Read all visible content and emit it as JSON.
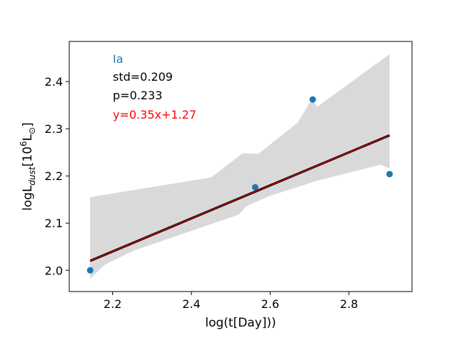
{
  "chart_data": {
    "type": "scatter",
    "title": "",
    "xlabel": "log(t[Day]))",
    "ylabel": {
      "prefix": "logL",
      "subscript": "dust",
      "bracket_open": "[10",
      "superscript": "6",
      "unit": "L",
      "unit_subscript": "⊙",
      "bracket_close": "]"
    },
    "xlim": [
      2.09,
      2.96
    ],
    "ylim": [
      1.955,
      2.485
    ],
    "xticks": [
      2.2,
      2.4,
      2.6,
      2.8
    ],
    "xtick_labels": [
      "2.2",
      "2.4",
      "2.6",
      "2.8"
    ],
    "yticks": [
      2.0,
      2.1,
      2.2,
      2.3,
      2.4
    ],
    "ytick_labels": [
      "2.0",
      "2.1",
      "2.2",
      "2.3",
      "2.4"
    ],
    "grid": false,
    "series": [
      {
        "name": "Ia",
        "color": "#1f77b4",
        "x": [
          2.143,
          2.562,
          2.708,
          2.903
        ],
        "y": [
          2.0,
          2.176,
          2.362,
          2.204
        ]
      }
    ],
    "fit": {
      "color": "#cc0000",
      "edge_color": "#000000",
      "slope": 0.35,
      "intercept": 1.27,
      "x_range": [
        2.143,
        2.903
      ],
      "y_range": [
        2.031,
        2.3
      ]
    },
    "confidence_band": {
      "color": "#d9d9d9",
      "upper": [
        [
          2.143,
          2.155
        ],
        [
          2.45,
          2.197
        ],
        [
          2.53,
          2.248
        ],
        [
          2.57,
          2.247
        ],
        [
          2.67,
          2.313
        ],
        [
          2.705,
          2.362
        ],
        [
          2.72,
          2.347
        ],
        [
          2.903,
          2.458
        ]
      ],
      "lower": [
        [
          2.143,
          1.982
        ],
        [
          2.18,
          2.012
        ],
        [
          2.255,
          2.042
        ],
        [
          2.45,
          2.098
        ],
        [
          2.52,
          2.118
        ],
        [
          2.54,
          2.136
        ],
        [
          2.6,
          2.158
        ],
        [
          2.72,
          2.19
        ],
        [
          2.88,
          2.224
        ],
        [
          2.903,
          2.216
        ]
      ]
    },
    "annotations": {
      "label": {
        "text": "Ia",
        "color": "#1f77b4"
      },
      "std": {
        "text": "std=0.209",
        "color": "#000000"
      },
      "p": {
        "text": "p=0.233",
        "color": "#000000"
      },
      "equation": {
        "text": "y=0.35x+1.27",
        "color": "#ff0000"
      }
    }
  }
}
